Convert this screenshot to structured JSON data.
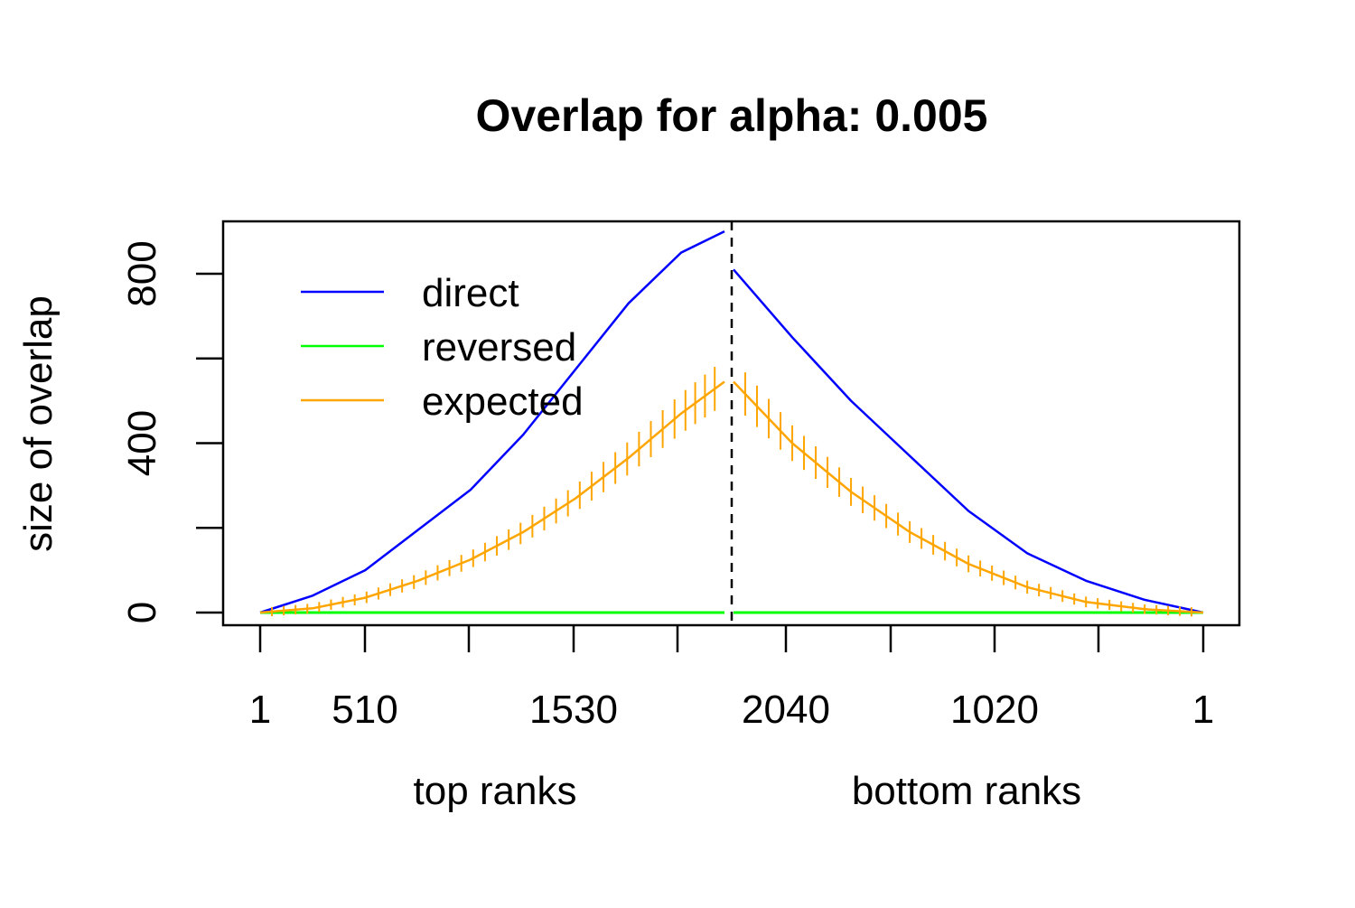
{
  "chart_data": {
    "type": "line",
    "title": "Overlap for alpha: 0.005",
    "ylabel": "size of overlap",
    "xlabels": [
      "top ranks",
      "bottom ranks"
    ],
    "ylim": [
      0,
      900
    ],
    "yticks": [
      0,
      200,
      400,
      600,
      800
    ],
    "ytick_labels": [
      "0",
      "400",
      "800"
    ],
    "x_tick_labels": [
      "1",
      "510",
      "1530",
      "2040",
      "1020",
      "1"
    ],
    "grid": false,
    "legend": {
      "position": "top-left",
      "entries": [
        {
          "label": "direct",
          "color": "#0000ff"
        },
        {
          "label": "reversed",
          "color": "#00ff00"
        },
        {
          "label": "expected",
          "color": "#ffa500"
        }
      ]
    },
    "split_marker": {
      "style": "dashed",
      "color": "#000000"
    },
    "series": [
      {
        "name": "direct",
        "color": "#0000ff",
        "top": {
          "x": [
            1,
            255,
            510,
            765,
            1020,
            1275,
            1530,
            1785,
            2040,
            2250
          ],
          "y": [
            0,
            40,
            100,
            195,
            290,
            420,
            575,
            730,
            850,
            900
          ]
        },
        "bottom": {
          "x": [
            2040,
            1785,
            1530,
            1275,
            1020,
            765,
            510,
            255,
            1
          ],
          "y": [
            810,
            650,
            500,
            370,
            240,
            140,
            75,
            30,
            0
          ]
        }
      },
      {
        "name": "reversed",
        "color": "#00ff00",
        "top": {
          "x": [
            1,
            2250
          ],
          "y": [
            0,
            0
          ]
        },
        "bottom": {
          "x": [
            2040,
            1
          ],
          "y": [
            0,
            0
          ]
        }
      },
      {
        "name": "expected",
        "color": "#ffa500",
        "error_bars": true,
        "top": {
          "x": [
            1,
            255,
            510,
            765,
            1020,
            1275,
            1530,
            1785,
            2040,
            2250
          ],
          "y": [
            0,
            10,
            35,
            75,
            125,
            190,
            270,
            365,
            470,
            545
          ]
        },
        "bottom": {
          "x": [
            2040,
            1785,
            1530,
            1275,
            1020,
            765,
            510,
            255,
            1
          ],
          "y": [
            545,
            400,
            285,
            190,
            115,
            60,
            25,
            8,
            0
          ]
        }
      }
    ]
  }
}
